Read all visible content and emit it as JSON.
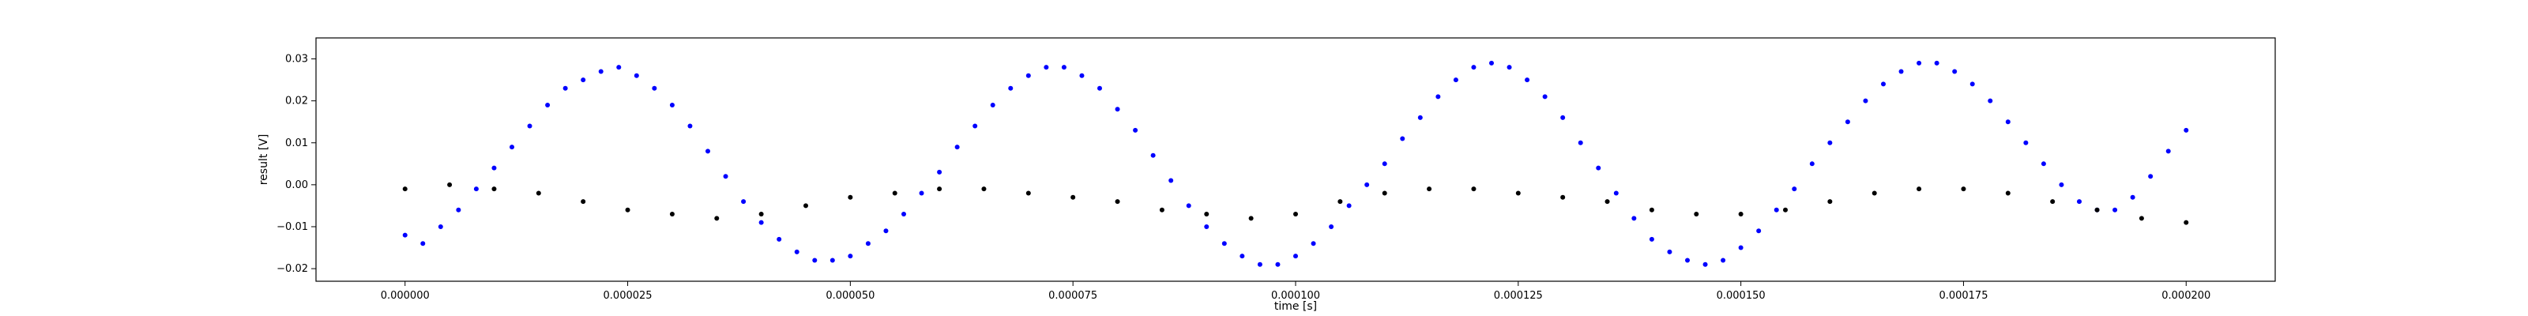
{
  "chart_data": {
    "type": "scatter",
    "title": "",
    "xlabel": "time [s]",
    "ylabel": "result [V]",
    "xlim": [
      -1e-05,
      0.00021
    ],
    "ylim": [
      -0.023,
      0.035
    ],
    "grid": false,
    "legend": "none",
    "x_ticks": [
      0,
      2.5e-05,
      5e-05,
      7.5e-05,
      0.0001,
      0.000125,
      0.00015,
      0.000175,
      0.0002
    ],
    "x_tick_labels": [
      "0.000000",
      "0.000025",
      "0.000050",
      "0.000075",
      "0.000100",
      "0.000125",
      "0.000150",
      "0.000175",
      "0.000200"
    ],
    "y_ticks": [
      -0.02,
      -0.01,
      0.0,
      0.01,
      0.02,
      0.03
    ],
    "y_tick_labels": [
      "−0.02",
      "−0.01",
      "0.00",
      "0.01",
      "0.02",
      "0.03"
    ],
    "series": [
      {
        "color": "#0000ff",
        "marker": "dot",
        "x": [
          0.0,
          2e-06,
          4e-06,
          6e-06,
          8e-06,
          1e-05,
          1.2e-05,
          1.4e-05,
          1.6e-05,
          1.8e-05,
          2e-05,
          2.2e-05,
          2.4e-05,
          2.6e-05,
          2.8e-05,
          3e-05,
          3.2e-05,
          3.4e-05,
          3.6e-05,
          3.8e-05,
          4e-05,
          4.2e-05,
          4.4e-05,
          4.6e-05,
          4.8e-05,
          5e-05,
          5.2e-05,
          5.4e-05,
          5.6e-05,
          5.8e-05,
          6e-05,
          6.2e-05,
          6.4e-05,
          6.6e-05,
          6.8e-05,
          7e-05,
          7.2e-05,
          7.4e-05,
          7.6e-05,
          7.8e-05,
          8e-05,
          8.2e-05,
          8.4e-05,
          8.6e-05,
          8.8e-05,
          9e-05,
          9.2e-05,
          9.4e-05,
          9.6e-05,
          9.8e-05,
          0.0001,
          0.000102,
          0.000104,
          0.000106,
          0.000108,
          0.00011,
          0.000112,
          0.000114,
          0.000116,
          0.000118,
          0.00012,
          0.000122,
          0.000124,
          0.000126,
          0.000128,
          0.00013,
          0.000132,
          0.000134,
          0.000136,
          0.000138,
          0.00014,
          0.000142,
          0.000144,
          0.000146,
          0.000148,
          0.00015,
          0.000152,
          0.000154,
          0.000156,
          0.000158,
          0.00016,
          0.000162,
          0.000164,
          0.000166,
          0.000168,
          0.00017,
          0.000172,
          0.000174,
          0.000176,
          0.000178,
          0.00018,
          0.000182,
          0.000184,
          0.000186,
          0.000188,
          0.00019,
          0.000192,
          0.000194,
          0.000196,
          0.000198,
          0.0002
        ],
        "y": [
          -0.012,
          -0.014,
          -0.01,
          -0.006,
          -0.001,
          0.004,
          0.009,
          0.014,
          0.019,
          0.023,
          0.025,
          0.027,
          0.028,
          0.026,
          0.023,
          0.019,
          0.014,
          0.008,
          0.002,
          -0.004,
          -0.009,
          -0.013,
          -0.016,
          -0.018,
          -0.018,
          -0.017,
          -0.014,
          -0.011,
          -0.007,
          -0.002,
          0.003,
          0.009,
          0.014,
          0.019,
          0.023,
          0.026,
          0.028,
          0.028,
          0.026,
          0.023,
          0.018,
          0.013,
          0.007,
          0.001,
          -0.005,
          -0.01,
          -0.014,
          -0.017,
          -0.019,
          -0.019,
          -0.017,
          -0.014,
          -0.01,
          -0.005,
          0.0,
          0.005,
          0.011,
          0.016,
          0.021,
          0.025,
          0.028,
          0.029,
          0.028,
          0.025,
          0.021,
          0.016,
          0.01,
          0.004,
          -0.002,
          -0.008,
          -0.013,
          -0.016,
          -0.018,
          -0.019,
          -0.018,
          -0.015,
          -0.011,
          -0.006,
          -0.001,
          0.005,
          0.01,
          0.015,
          0.02,
          0.024,
          0.027,
          0.029,
          0.029,
          0.027,
          0.024,
          0.02,
          0.015,
          0.01,
          0.005,
          0.0,
          -0.004,
          -0.006,
          -0.006,
          -0.003,
          0.002,
          0.008,
          0.013
        ]
      },
      {
        "color": "#000000",
        "marker": "dot",
        "x": [
          0.0,
          5e-06,
          1e-05,
          1.5e-05,
          2e-05,
          2.5e-05,
          3e-05,
          3.5e-05,
          4e-05,
          4.5e-05,
          5e-05,
          5.5e-05,
          6e-05,
          6.5e-05,
          7e-05,
          7.5e-05,
          8e-05,
          8.5e-05,
          9e-05,
          9.5e-05,
          0.0001,
          0.000105,
          0.00011,
          0.000115,
          0.00012,
          0.000125,
          0.00013,
          0.000135,
          0.00014,
          0.000145,
          0.00015,
          0.000155,
          0.00016,
          0.000165,
          0.00017,
          0.000175,
          0.00018,
          0.000185,
          0.00019,
          0.000195,
          0.0002
        ],
        "y": [
          -0.001,
          0.0,
          -0.001,
          -0.002,
          -0.004,
          -0.006,
          -0.007,
          -0.008,
          -0.007,
          -0.005,
          -0.003,
          -0.002,
          -0.001,
          -0.001,
          -0.002,
          -0.003,
          -0.004,
          -0.006,
          -0.007,
          -0.008,
          -0.007,
          -0.004,
          -0.002,
          -0.001,
          -0.001,
          -0.002,
          -0.003,
          -0.004,
          -0.006,
          -0.007,
          -0.007,
          -0.006,
          -0.004,
          -0.002,
          -0.001,
          -0.001,
          -0.002,
          -0.004,
          -0.006,
          -0.008,
          -0.009
        ]
      }
    ]
  }
}
